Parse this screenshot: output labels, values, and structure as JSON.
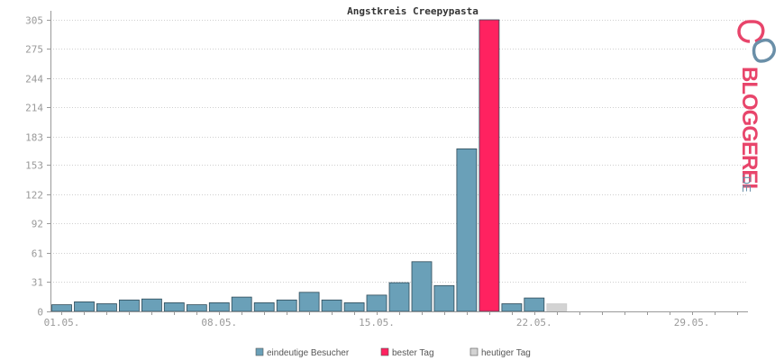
{
  "chart_data": {
    "type": "bar",
    "title": "Angstkreis Creepypasta",
    "xlabel": "",
    "ylabel": "",
    "ylim": [
      0,
      305
    ],
    "y_ticks": [
      "0",
      "31",
      "61",
      "92",
      "122",
      "153",
      "183",
      "214",
      "244",
      "275",
      "305"
    ],
    "x_tick_labels": [
      {
        "label": "01.05.",
        "day": 1
      },
      {
        "label": "08.05.",
        "day": 8
      },
      {
        "label": "15.05.",
        "day": 15
      },
      {
        "label": "22.05.",
        "day": 22
      },
      {
        "label": "29.05.",
        "day": 29
      }
    ],
    "grid": true,
    "legend_position": "bottom",
    "series": [
      {
        "name": "eindeutige Besucher",
        "color": "#6aa0b8",
        "days": [
          1,
          2,
          3,
          4,
          5,
          6,
          7,
          8,
          9,
          10,
          11,
          12,
          13,
          14,
          15,
          16,
          17,
          18,
          19,
          21,
          22
        ],
        "values": [
          7,
          10,
          8,
          12,
          13,
          9,
          7,
          9,
          15,
          9,
          12,
          20,
          12,
          9,
          17,
          30,
          52,
          27,
          170,
          8,
          14
        ]
      },
      {
        "name": "bester Tag",
        "color": "#ff2260",
        "days": [
          20
        ],
        "values": [
          305
        ]
      },
      {
        "name": "heutiger Tag",
        "color": "#d3d3d3",
        "days": [
          23
        ],
        "values": [
          8
        ]
      }
    ],
    "days_total": 31
  },
  "logo": {
    "text": "BLOGGEREI",
    "suffix": ".DE",
    "colors": {
      "pink": "#e8456b",
      "blue": "#6a8fa8",
      "dark": "#5a4a5e"
    }
  }
}
